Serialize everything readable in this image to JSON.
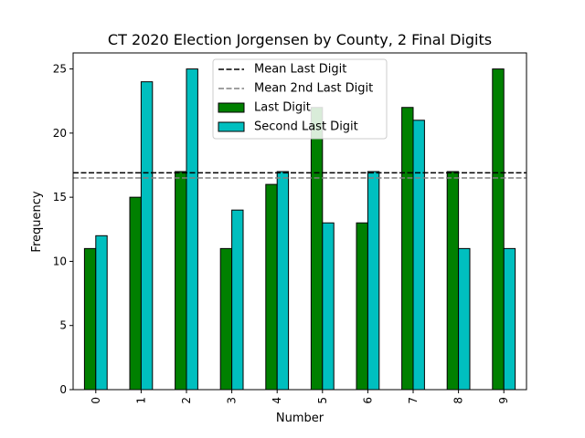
{
  "chart_data": {
    "type": "bar",
    "title": "CT 2020 Election Jorgensen by County, 2 Final Digits",
    "xlabel": "Number",
    "ylabel": "Frequency",
    "categories": [
      "0",
      "1",
      "2",
      "3",
      "4",
      "5",
      "6",
      "7",
      "8",
      "9"
    ],
    "ylim": [
      0,
      26.25
    ],
    "yticks": [
      0,
      5,
      10,
      15,
      20,
      25
    ],
    "series": [
      {
        "name": "Last Digit",
        "color": "#008000",
        "values": [
          11,
          15,
          17,
          11,
          16,
          22,
          13,
          22,
          17,
          25
        ]
      },
      {
        "name": "Second Last Digit",
        "color": "#00bfbf",
        "values": [
          12,
          24,
          25,
          14,
          17,
          13,
          17,
          21,
          11,
          11
        ]
      }
    ],
    "reference_lines": [
      {
        "name": "Mean Last Digit",
        "value": 16.9,
        "color": "#000000",
        "style": "dashed"
      },
      {
        "name": "Mean 2nd Last Digit",
        "value": 16.5,
        "color": "#808080",
        "style": "dashed"
      }
    ],
    "legend": {
      "placement": "upper-center",
      "entries": [
        "Mean Last Digit",
        "Mean 2nd Last Digit",
        "Last Digit",
        "Second Last Digit"
      ]
    },
    "grid": false
  }
}
